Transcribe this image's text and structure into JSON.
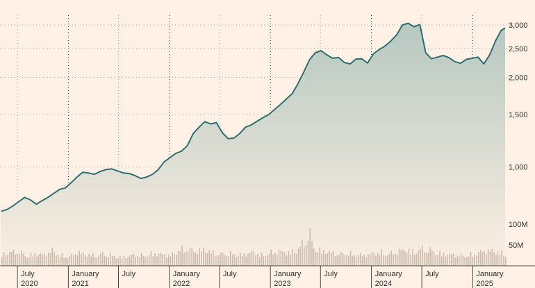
{
  "chart_data": {
    "type": "area",
    "title": "",
    "xlabel": "",
    "ylabel": "",
    "x_range": [
      "2020-05-04",
      "2025-04-28"
    ],
    "price_axis": {
      "ylim": [
        600,
        3150
      ],
      "ticks": [
        "1,000",
        "1,500",
        "2,000",
        "2,500",
        "3,000"
      ],
      "tick_values": [
        1000,
        1500,
        2000,
        2500,
        3000
      ],
      "gridlines": true
    },
    "volume_axis": {
      "ylim": [
        0,
        110
      ],
      "unit": "M",
      "ticks": [
        "50M",
        "100M"
      ],
      "tick_values": [
        50,
        100
      ]
    },
    "x_ticks": [
      {
        "date": "2020-07-01",
        "month": "July",
        "year": "2020"
      },
      {
        "date": "2021-01-01",
        "month": "January",
        "year": "2021"
      },
      {
        "date": "2021-07-01",
        "month": "July",
        "year": ""
      },
      {
        "date": "2022-01-01",
        "month": "January",
        "year": "2022"
      },
      {
        "date": "2022-07-01",
        "month": "July",
        "year": ""
      },
      {
        "date": "2023-01-01",
        "month": "January",
        "year": "2023"
      },
      {
        "date": "2023-07-01",
        "month": "July",
        "year": ""
      },
      {
        "date": "2024-01-01",
        "month": "January",
        "year": "2024"
      },
      {
        "date": "2024-07-01",
        "month": "July",
        "year": ""
      },
      {
        "date": "2025-01-01",
        "month": "January",
        "year": "2025"
      }
    ],
    "price_series": [
      [
        "2020-05-04",
        710
      ],
      [
        "2020-05-25",
        720
      ],
      [
        "2020-06-15",
        740
      ],
      [
        "2020-07-06",
        765
      ],
      [
        "2020-07-27",
        790
      ],
      [
        "2020-08-17",
        775
      ],
      [
        "2020-09-07",
        750
      ],
      [
        "2020-09-28",
        770
      ],
      [
        "2020-10-19",
        790
      ],
      [
        "2020-11-09",
        815
      ],
      [
        "2020-11-30",
        840
      ],
      [
        "2020-12-21",
        850
      ],
      [
        "2021-01-11",
        885
      ],
      [
        "2021-02-01",
        925
      ],
      [
        "2021-02-22",
        960
      ],
      [
        "2021-03-15",
        955
      ],
      [
        "2021-04-05",
        945
      ],
      [
        "2021-04-26",
        965
      ],
      [
        "2021-05-17",
        980
      ],
      [
        "2021-06-07",
        985
      ],
      [
        "2021-06-28",
        970
      ],
      [
        "2021-07-19",
        955
      ],
      [
        "2021-08-09",
        950
      ],
      [
        "2021-08-30",
        935
      ],
      [
        "2021-09-20",
        915
      ],
      [
        "2021-10-11",
        925
      ],
      [
        "2021-11-01",
        945
      ],
      [
        "2021-11-22",
        980
      ],
      [
        "2021-12-13",
        1040
      ],
      [
        "2022-01-03",
        1075
      ],
      [
        "2022-01-24",
        1110
      ],
      [
        "2022-02-14",
        1130
      ],
      [
        "2022-03-07",
        1180
      ],
      [
        "2022-03-28",
        1295
      ],
      [
        "2022-04-18",
        1360
      ],
      [
        "2022-05-09",
        1420
      ],
      [
        "2022-05-30",
        1395
      ],
      [
        "2022-06-20",
        1410
      ],
      [
        "2022-07-11",
        1305
      ],
      [
        "2022-08-01",
        1245
      ],
      [
        "2022-08-22",
        1250
      ],
      [
        "2022-09-12",
        1295
      ],
      [
        "2022-10-03",
        1360
      ],
      [
        "2022-10-24",
        1385
      ],
      [
        "2022-11-14",
        1425
      ],
      [
        "2022-12-05",
        1465
      ],
      [
        "2022-12-26",
        1500
      ],
      [
        "2023-01-16",
        1560
      ],
      [
        "2023-02-06",
        1620
      ],
      [
        "2023-02-27",
        1690
      ],
      [
        "2023-03-20",
        1760
      ],
      [
        "2023-04-10",
        1900
      ],
      [
        "2023-05-01",
        2080
      ],
      [
        "2023-05-22",
        2290
      ],
      [
        "2023-06-12",
        2420
      ],
      [
        "2023-07-03",
        2460
      ],
      [
        "2023-07-24",
        2380
      ],
      [
        "2023-08-14",
        2320
      ],
      [
        "2023-09-04",
        2335
      ],
      [
        "2023-09-25",
        2245
      ],
      [
        "2023-10-16",
        2220
      ],
      [
        "2023-11-06",
        2305
      ],
      [
        "2023-11-27",
        2310
      ],
      [
        "2023-12-18",
        2235
      ],
      [
        "2024-01-08",
        2400
      ],
      [
        "2024-01-29",
        2480
      ],
      [
        "2024-02-19",
        2550
      ],
      [
        "2024-03-11",
        2650
      ],
      [
        "2024-04-01",
        2780
      ],
      [
        "2024-04-22",
        3000
      ],
      [
        "2024-05-13",
        3040
      ],
      [
        "2024-06-03",
        2960
      ],
      [
        "2024-06-24",
        3010
      ],
      [
        "2024-07-15",
        2420
      ],
      [
        "2024-08-05",
        2310
      ],
      [
        "2024-08-26",
        2340
      ],
      [
        "2024-09-16",
        2370
      ],
      [
        "2024-10-07",
        2330
      ],
      [
        "2024-10-28",
        2260
      ],
      [
        "2024-11-18",
        2230
      ],
      [
        "2024-12-09",
        2300
      ],
      [
        "2024-12-30",
        2320
      ],
      [
        "2025-01-20",
        2340
      ],
      [
        "2025-02-10",
        2220
      ],
      [
        "2025-03-03",
        2380
      ],
      [
        "2025-03-24",
        2650
      ],
      [
        "2025-04-14",
        2880
      ],
      [
        "2025-04-28",
        2930
      ]
    ],
    "volume_series": [
      [
        "2020-05-04",
        30
      ],
      [
        "2020-06-01",
        35
      ],
      [
        "2020-07-01",
        38
      ],
      [
        "2020-08-03",
        25
      ],
      [
        "2020-09-01",
        32
      ],
      [
        "2020-10-01",
        28
      ],
      [
        "2020-11-02",
        40
      ],
      [
        "2020-12-01",
        26
      ],
      [
        "2021-01-04",
        24
      ],
      [
        "2021-02-01",
        36
      ],
      [
        "2021-03-01",
        30
      ],
      [
        "2021-04-01",
        27
      ],
      [
        "2021-05-03",
        31
      ],
      [
        "2021-06-01",
        28
      ],
      [
        "2021-07-01",
        22
      ],
      [
        "2021-08-02",
        25
      ],
      [
        "2021-09-01",
        29
      ],
      [
        "2021-10-01",
        26
      ],
      [
        "2021-11-01",
        33
      ],
      [
        "2021-12-01",
        30
      ],
      [
        "2022-01-03",
        28
      ],
      [
        "2022-02-01",
        40
      ],
      [
        "2022-03-01",
        45
      ],
      [
        "2022-04-01",
        38
      ],
      [
        "2022-05-02",
        42
      ],
      [
        "2022-06-01",
        35
      ],
      [
        "2022-07-01",
        30
      ],
      [
        "2022-08-01",
        33
      ],
      [
        "2022-09-01",
        28
      ],
      [
        "2022-10-03",
        31
      ],
      [
        "2022-11-01",
        36
      ],
      [
        "2022-12-01",
        27
      ],
      [
        "2023-01-03",
        35
      ],
      [
        "2023-02-01",
        38
      ],
      [
        "2023-03-01",
        34
      ],
      [
        "2023-04-03",
        40
      ],
      [
        "2023-05-01",
        62
      ],
      [
        "2023-05-22",
        85
      ],
      [
        "2023-06-01",
        48
      ],
      [
        "2023-07-03",
        38
      ],
      [
        "2023-08-01",
        36
      ],
      [
        "2023-09-01",
        30
      ],
      [
        "2023-10-02",
        33
      ],
      [
        "2023-11-01",
        29
      ],
      [
        "2023-12-01",
        28
      ],
      [
        "2024-01-02",
        32
      ],
      [
        "2024-02-01",
        35
      ],
      [
        "2024-03-01",
        30
      ],
      [
        "2024-04-01",
        38
      ],
      [
        "2024-05-01",
        42
      ],
      [
        "2024-06-03",
        35
      ],
      [
        "2024-07-01",
        45
      ],
      [
        "2024-08-01",
        40
      ],
      [
        "2024-09-03",
        32
      ],
      [
        "2024-10-01",
        30
      ],
      [
        "2024-11-01",
        28
      ],
      [
        "2024-12-02",
        26
      ],
      [
        "2025-01-02",
        30
      ],
      [
        "2025-02-03",
        38
      ],
      [
        "2025-03-03",
        40
      ],
      [
        "2025-04-01",
        35
      ],
      [
        "2025-04-28",
        30
      ]
    ],
    "colors": {
      "line": "#2e6e70",
      "fill_top": "#b6c8c0",
      "fill_bottom": "#fcefe3",
      "volume": "#c9bcae",
      "grid": "#b8aea4",
      "year_line": "#4d4845",
      "background": "#fff1e5"
    }
  }
}
